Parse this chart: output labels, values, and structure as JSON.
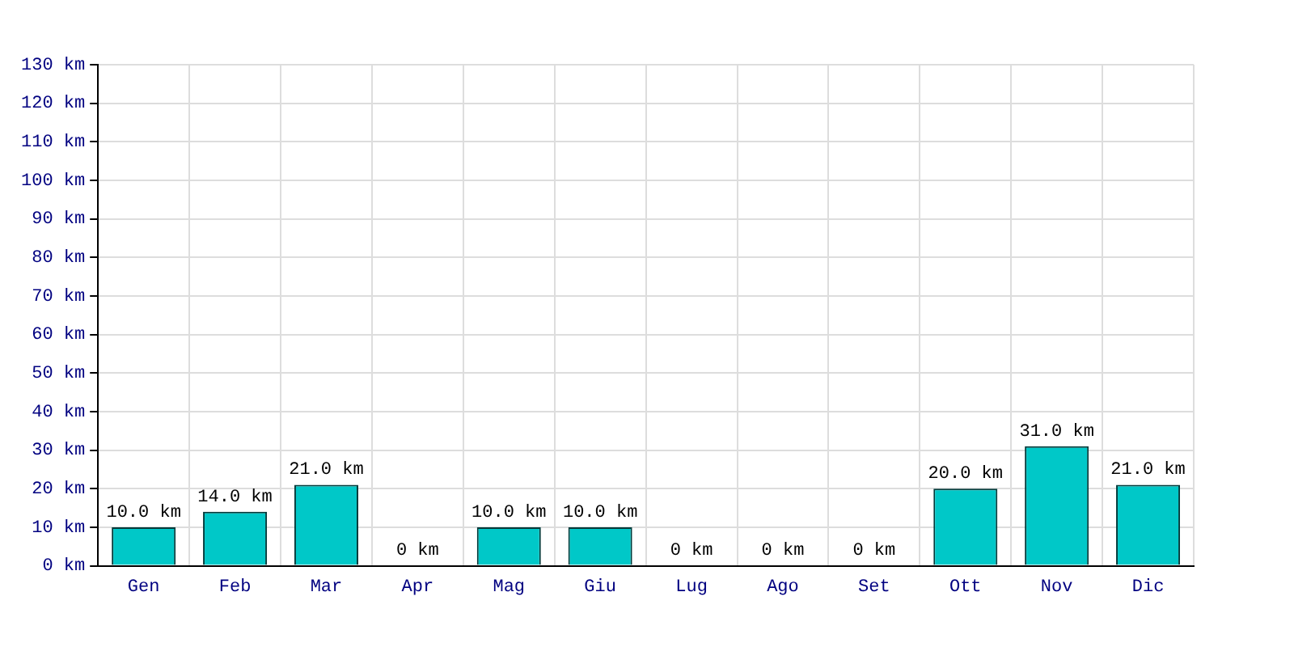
{
  "chart_data": {
    "type": "bar",
    "categories": [
      "Gen",
      "Feb",
      "Mar",
      "Apr",
      "Mag",
      "Giu",
      "Lug",
      "Ago",
      "Set",
      "Ott",
      "Nov",
      "Dic"
    ],
    "values": [
      10,
      14,
      21,
      0,
      10,
      10,
      0,
      0,
      0,
      20,
      31,
      21
    ],
    "value_labels": [
      "10.0 km",
      "14.0 km",
      "21.0 km",
      "0 km",
      "10.0 km",
      "10.0 km",
      "0 km",
      "0 km",
      "0 km",
      "20.0 km",
      "31.0 km",
      "21.0 km"
    ],
    "color": "#00c8c8",
    "ylim": [
      0,
      130
    ],
    "yticks": [
      {
        "value": 0,
        "label": "0 km"
      },
      {
        "value": 10,
        "label": "10 km"
      },
      {
        "value": 20,
        "label": "20 km"
      },
      {
        "value": 30,
        "label": "30 km"
      },
      {
        "value": 40,
        "label": "40 km"
      },
      {
        "value": 50,
        "label": "50 km"
      },
      {
        "value": 60,
        "label": "60 km"
      },
      {
        "value": 70,
        "label": "70 km"
      },
      {
        "value": 80,
        "label": "80 km"
      },
      {
        "value": 90,
        "label": "90 km"
      },
      {
        "value": 100,
        "label": "100 km"
      },
      {
        "value": 110,
        "label": "110 km"
      },
      {
        "value": 120,
        "label": "120 km"
      },
      {
        "value": 130,
        "label": "130 km"
      }
    ],
    "grid": true
  }
}
